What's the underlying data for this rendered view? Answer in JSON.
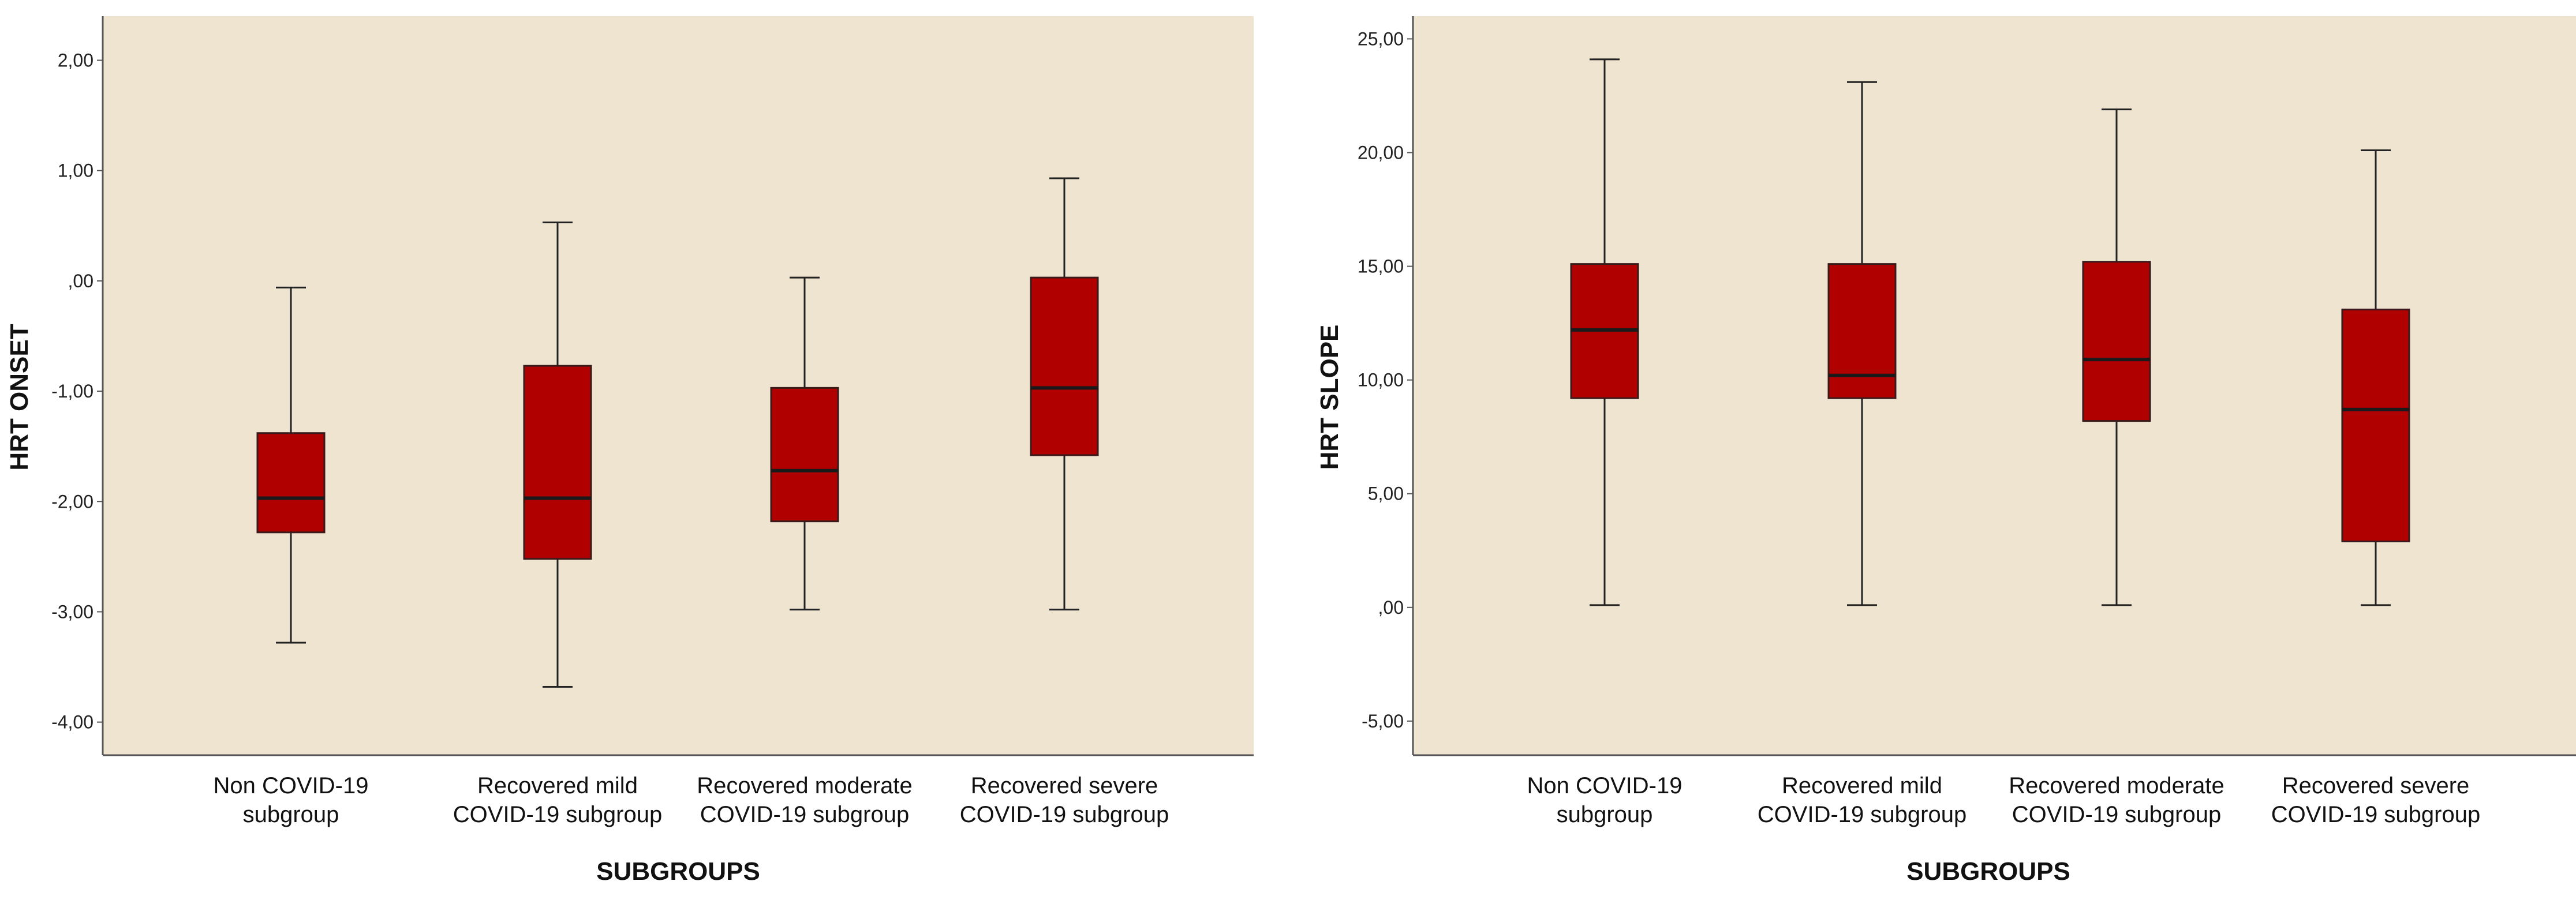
{
  "chart_data": [
    {
      "type": "box",
      "title": "",
      "xlabel": "SUBGROUPS",
      "ylabel": "HRT  ONSET",
      "ylim": [
        -4.3,
        2.4
      ],
      "yticks": [
        2,
        1,
        0,
        -1,
        -2,
        -3,
        -4
      ],
      "ytick_labels": [
        "2,00",
        "1,00",
        ",00",
        "-1,00",
        "-2,00",
        "-3,00",
        "-4,00"
      ],
      "categories": [
        [
          "Non COVID-19",
          "subgroup"
        ],
        [
          "Recovered  mild",
          "COVID-19 subgroup"
        ],
        [
          "Recovered moderate",
          "COVID-19 subgroup"
        ],
        [
          "Recovered severe",
          "COVID-19 subgroup"
        ]
      ],
      "boxes": [
        {
          "min": -3.28,
          "q1": -2.28,
          "median": -1.97,
          "q3": -1.38,
          "max": -0.06
        },
        {
          "min": -3.68,
          "q1": -2.52,
          "median": -1.97,
          "q3": -0.77,
          "max": 0.53
        },
        {
          "min": -2.98,
          "q1": -2.18,
          "median": -1.72,
          "q3": -0.97,
          "max": 0.03
        },
        {
          "min": -2.98,
          "q1": -1.58,
          "median": -0.97,
          "q3": 0.03,
          "max": 0.93
        }
      ],
      "box_color": "#b00000",
      "background": "#efe4cf"
    },
    {
      "type": "box",
      "title": "",
      "xlabel": "SUBGROUPS",
      "ylabel": "HRT  SLOPE",
      "ylim": [
        -6.5,
        26
      ],
      "yticks": [
        25,
        20,
        15,
        10,
        5,
        0,
        -5
      ],
      "ytick_labels": [
        "25,00",
        "20,00",
        "15,00",
        "10,00",
        "5,00",
        ",00",
        "-5,00"
      ],
      "categories": [
        [
          "Non COVID-19",
          "subgroup"
        ],
        [
          "Recovered  mild",
          "COVID-19 subgroup"
        ],
        [
          "Recovered moderate",
          "COVID-19 subgroup"
        ],
        [
          "Recovered severe",
          "COVID-19 subgroup"
        ]
      ],
      "boxes": [
        {
          "min": 0.1,
          "q1": 9.2,
          "median": 12.2,
          "q3": 15.1,
          "max": 24.1
        },
        {
          "min": 0.1,
          "q1": 9.2,
          "median": 10.2,
          "q3": 15.1,
          "max": 23.1
        },
        {
          "min": 0.1,
          "q1": 8.2,
          "median": 10.9,
          "q3": 15.2,
          "max": 21.9
        },
        {
          "min": 0.1,
          "q1": 2.9,
          "median": 8.7,
          "q3": 13.1,
          "max": 20.1
        }
      ],
      "box_color": "#b00000",
      "background": "#efe4cf"
    }
  ]
}
